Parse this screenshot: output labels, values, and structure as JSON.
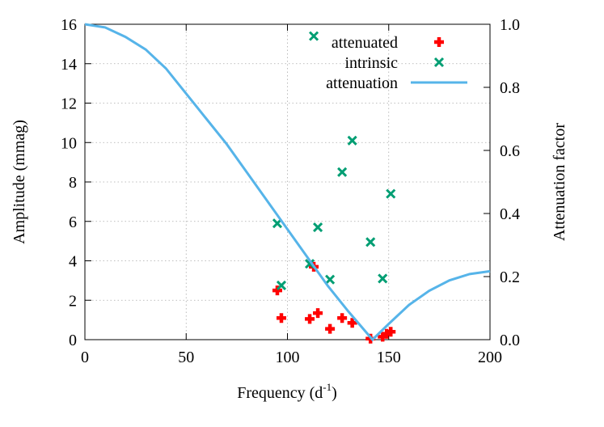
{
  "chart_data": {
    "type": "scatter",
    "xlabel": {
      "text": "Frequency (d",
      "sup": "-1",
      "close": ")"
    },
    "ylabel": "Amplitude (mmag)",
    "y2label": "Attenuation factor",
    "xlim": [
      0,
      200
    ],
    "xticks": [
      0,
      50,
      100,
      150,
      200
    ],
    "ylim": [
      0,
      16
    ],
    "yticks": [
      0,
      2,
      4,
      6,
      8,
      10,
      12,
      14,
      16
    ],
    "y2lim": [
      0,
      1
    ],
    "y2ticks": [
      {
        "value": 0,
        "label": "0.0"
      },
      {
        "value": 0.2,
        "label": "0.2"
      },
      {
        "value": 0.4,
        "label": "0.4"
      },
      {
        "value": 0.6,
        "label": "0.6"
      },
      {
        "value": 0.8,
        "label": "0.8"
      },
      {
        "value": 1,
        "label": "1.0"
      }
    ],
    "grid": true,
    "legend": "upper right",
    "series": [
      {
        "name": "attenuated",
        "color": "#ff0000",
        "marker": "plus",
        "x": [
          95,
          97,
          111,
          113,
          115,
          121,
          127,
          132,
          141,
          147,
          149,
          151
        ],
        "values": [
          2.5,
          1.1,
          1.05,
          3.7,
          1.35,
          0.55,
          1.1,
          0.85,
          0.05,
          0.15,
          0.3,
          0.4
        ]
      },
      {
        "name": "intrinsic",
        "color": "#009e73",
        "marker": "cross",
        "x": [
          113,
          132,
          127,
          151,
          95,
          115,
          141,
          111,
          97,
          121,
          147
        ],
        "values": [
          15.4,
          10.1,
          8.5,
          7.4,
          5.9,
          5.7,
          4.95,
          3.85,
          2.75,
          3.05,
          3.1
        ]
      },
      {
        "name": "attenuation",
        "color": "#56b4e9",
        "marker": "line",
        "axis": "y2",
        "x": [
          0,
          10,
          20,
          30,
          40,
          50,
          60,
          70,
          80,
          90,
          100,
          110,
          120,
          130,
          142,
          150,
          160,
          170,
          180,
          190,
          200
        ],
        "values": [
          1,
          0.99,
          0.96,
          0.92,
          0.86,
          0.78,
          0.7,
          0.62,
          0.53,
          0.44,
          0.35,
          0.26,
          0.17,
          0.09,
          0,
          0.05,
          0.11,
          0.155,
          0.188,
          0.208,
          0.217
        ]
      }
    ]
  }
}
